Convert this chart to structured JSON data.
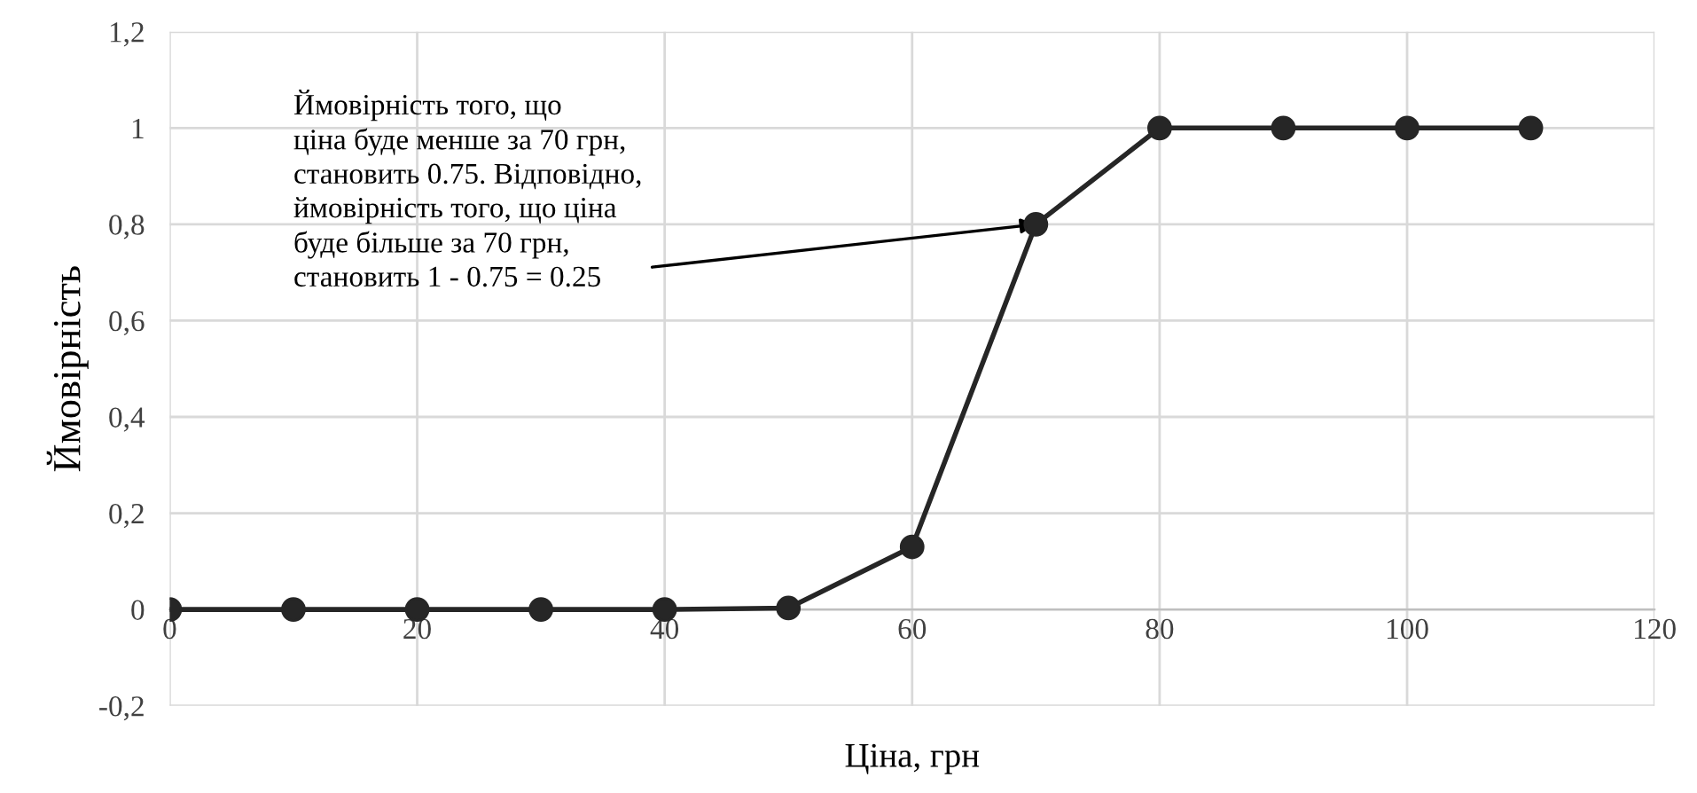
{
  "chart_data": {
    "type": "line",
    "xlabel": "Ціна, грн",
    "ylabel": "Ймовірність",
    "x": [
      0,
      10,
      20,
      30,
      40,
      50,
      60,
      70,
      80,
      90,
      100,
      110
    ],
    "series": [
      {
        "color": "#262626",
        "values": [
          0,
          0,
          0,
          0,
          0,
          0.003,
          0.13,
          0.8,
          1,
          1,
          1,
          1
        ]
      }
    ],
    "xlim": [
      0,
      120
    ],
    "xticks": [
      0,
      20,
      40,
      60,
      80,
      100,
      120
    ],
    "ylim": [
      -0.2,
      1.2
    ],
    "yticks": [
      {
        "value": -0.2,
        "label": "-0,2"
      },
      0,
      {
        "value": 0.2,
        "label": "0,2"
      },
      {
        "value": 0.4,
        "label": "0,4"
      },
      {
        "value": 0.6,
        "label": "0,6"
      },
      {
        "value": 0.8,
        "label": "0,8"
      },
      1,
      {
        "value": 1.2,
        "label": "1,2"
      }
    ],
    "grid": true,
    "marker": "circle",
    "line_style": "solid",
    "annotations": [
      {
        "text": "Ймовірність того, що\nціна буде менше за 70 грн,\nстановить 0.75. Відповідно,\nймовірність того, що ціна\nбуде більше за 70 грн,\nстановить 1 - 0.75 = 0.25",
        "x": 70,
        "y": 0.8
      }
    ]
  }
}
